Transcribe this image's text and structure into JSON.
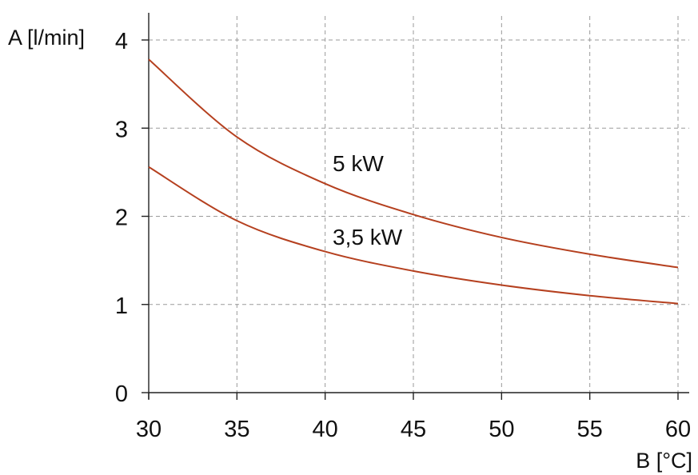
{
  "chart_data": {
    "type": "line",
    "title": "",
    "xlabel": "B [°C]",
    "ylabel": "A [l/min]",
    "xlim": [
      30,
      60
    ],
    "ylim": [
      0,
      4
    ],
    "xticks": [
      30,
      35,
      40,
      45,
      50,
      55,
      60
    ],
    "xtick_labels": [
      "30",
      "35",
      "40",
      "45",
      "50",
      "55",
      "60"
    ],
    "yticks": [
      0,
      1,
      2,
      3,
      4
    ],
    "ytick_labels": [
      "0",
      "1",
      "2",
      "3",
      "4"
    ],
    "grid": true,
    "line_color": "#b5401f",
    "series": [
      {
        "name": "5 kW",
        "x": [
          30,
          35,
          40,
          45,
          50,
          55,
          60
        ],
        "y": [
          3.78,
          2.9,
          2.37,
          2.02,
          1.76,
          1.57,
          1.42
        ]
      },
      {
        "name": "3,5 kW",
        "x": [
          30,
          35,
          40,
          45,
          50,
          55,
          60
        ],
        "y": [
          2.56,
          1.95,
          1.6,
          1.38,
          1.22,
          1.1,
          1.01
        ]
      }
    ]
  }
}
